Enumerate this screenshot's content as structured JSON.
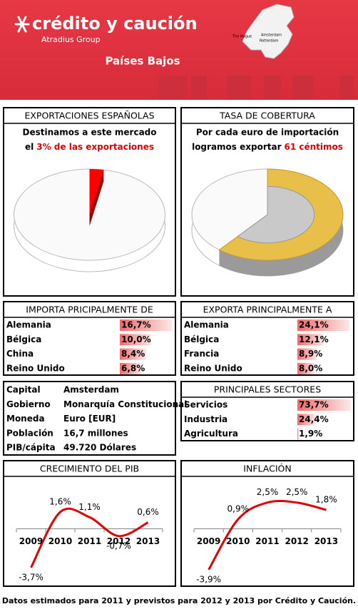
{
  "header": {
    "brand": "crédito y caución",
    "group": "Atradius Group",
    "country": "Países Bajos",
    "map_labels": [
      "The Hague",
      "Amsterdam",
      "Rotterdam"
    ]
  },
  "chart_data": [
    {
      "type": "pie",
      "title": "EXPORTACIONES ESPAÑOLAS",
      "text_line1": "Destinamos a este mercado",
      "text_line2": "el",
      "text_highlight": "3% de las exportaciones",
      "values": [
        3
      ],
      "color": "#ff0000"
    },
    {
      "type": "coin",
      "title": "TASA DE COBERTURA",
      "text_line1": "Por cada euro de importación",
      "text_line2": "logramos exportar",
      "text_highlight": "61 céntimos",
      "values": [
        61
      ],
      "color": "#e8c049"
    },
    {
      "type": "bar",
      "title": "IMPORTA PRICIPALMENTE DE",
      "categories": [
        "Alemania",
        "Bélgica",
        "China",
        "Reino Unido"
      ],
      "values": [
        16.7,
        10.0,
        8.4,
        6.8
      ],
      "value_labels": [
        "16,7%",
        "10,0%",
        "8,4%",
        "6,8%"
      ],
      "xlim": [
        0,
        17
      ],
      "color": "#f07070"
    },
    {
      "type": "bar",
      "title": "EXPORTA PRINCIPALMENTE A",
      "categories": [
        "Alemania",
        "Bélgica",
        "Francia",
        "Reino Unido"
      ],
      "values": [
        24.1,
        12.1,
        8.9,
        8.0
      ],
      "value_labels": [
        "24,1%",
        "12,1%",
        "8,9%",
        "8,0%"
      ],
      "xlim": [
        0,
        25
      ],
      "color": "#f07070"
    },
    {
      "type": "bar",
      "title": "PRINCIPALES SECTORES",
      "categories": [
        "Servicios",
        "Industria",
        "Agricultura"
      ],
      "values": [
        73.7,
        24.4,
        1.9
      ],
      "value_labels": [
        "73,7%",
        "24,4%",
        "1,9%"
      ],
      "xlim": [
        0,
        75
      ],
      "color": "#f07070"
    },
    {
      "type": "line",
      "title": "CRECIMIENTO DEL PIB",
      "categories": [
        "2009",
        "2010",
        "2011",
        "2012",
        "2013"
      ],
      "values": [
        -3.7,
        1.6,
        1.1,
        -0.7,
        0.6
      ],
      "value_labels": [
        "-3,7%",
        "1,6%",
        "1,1%",
        "-0,7%",
        "0,6%"
      ],
      "ylim": [
        -5,
        3.5
      ],
      "color": "#e00000"
    },
    {
      "type": "line",
      "title": "INFLACIÓN",
      "categories": [
        "2009",
        "2010",
        "2011",
        "2012",
        "2013"
      ],
      "values": [
        -3.9,
        0.9,
        2.5,
        2.5,
        1.8
      ],
      "value_labels": [
        "-3,9%",
        "0,9%",
        "2,5%",
        "2,5%",
        "1,8%"
      ],
      "ylim": [
        -5,
        3.5
      ],
      "color": "#e00000"
    }
  ],
  "country_info": {
    "rows": [
      [
        "Capital",
        "Amsterdam"
      ],
      [
        "Gobierno",
        "Monarquía Constitucional"
      ],
      [
        "Moneda",
        "Euro [EUR]"
      ],
      [
        "Población",
        "16,7 millones"
      ],
      [
        "PIB/cápita",
        "49.720 Dólares"
      ]
    ]
  },
  "footer": "Datos estimados para 2011 y previstos para 2012  y 2013 por Crédito y Caución."
}
